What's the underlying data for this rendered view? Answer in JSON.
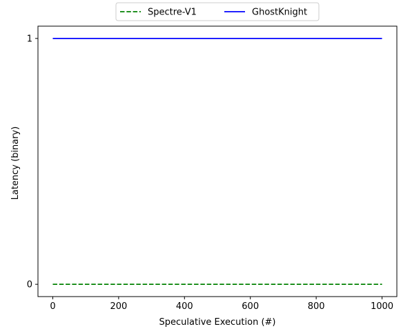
{
  "chart_data": {
    "type": "line",
    "title": "",
    "xlabel": "Speculative Execution (#)",
    "ylabel": "Latency (binary)",
    "xlim": [
      -45,
      1045
    ],
    "ylim": [
      -0.05,
      1.05
    ],
    "xticks": [
      0,
      200,
      400,
      600,
      800,
      1000
    ],
    "yticks": [
      0,
      1
    ],
    "grid": false,
    "legend": {
      "placement": "top-center, outside plot",
      "columns": 2
    },
    "series": [
      {
        "name": "Spectre-V1",
        "color": "#008000",
        "style": "dashed",
        "x": [
          0,
          1000
        ],
        "y": [
          0,
          0
        ]
      },
      {
        "name": "GhostKnight",
        "color": "#0000ff",
        "style": "solid",
        "x": [
          0,
          1000
        ],
        "y": [
          1,
          1
        ]
      }
    ]
  }
}
